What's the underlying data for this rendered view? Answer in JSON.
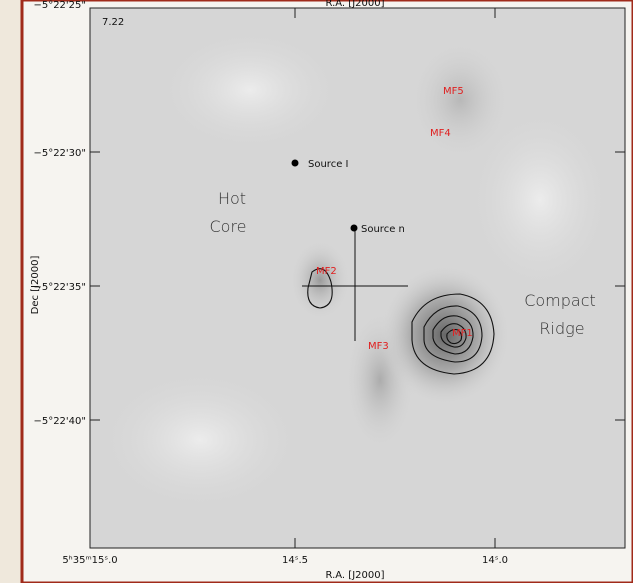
{
  "figure": {
    "top_axis_label": "R.A. [J2000]",
    "corner_value": "7.22",
    "y_axis_label": "Dec [J2000]",
    "x_axis_label": "R.A. [J2000]",
    "y_tick_labels": [
      "−5°22'25\"",
      "−5°22'30\"",
      "−5°22'35\"",
      "−5°22'40\""
    ],
    "x_tick_labels": [
      "5ʰ35ᵐ15ˢ.0",
      "14ˢ.5",
      "14ˢ.0"
    ],
    "sources": [
      "MF5",
      "MF4",
      "Source I",
      "Source n",
      "MF2",
      "MF3",
      "MF1"
    ],
    "regions": [
      [
        "Hot",
        "Core"
      ],
      [
        "Compact",
        "Ridge"
      ]
    ]
  }
}
